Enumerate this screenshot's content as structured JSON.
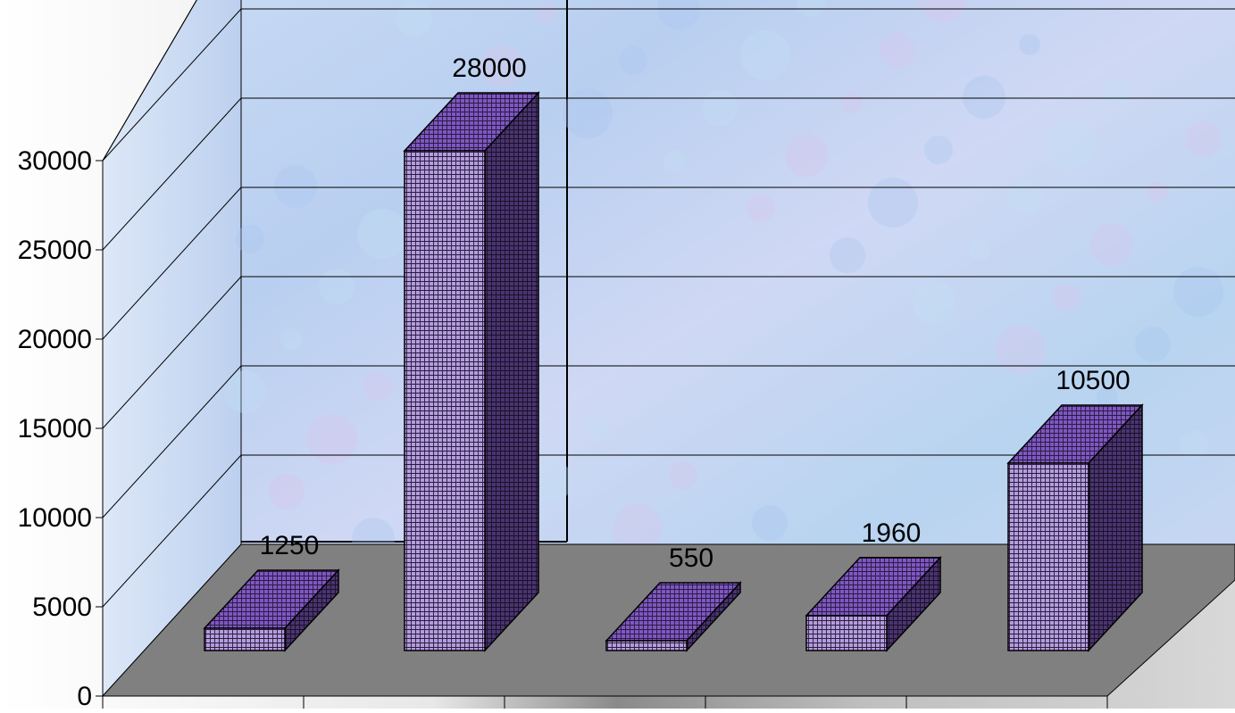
{
  "chart_data": {
    "type": "bar",
    "style": "3d-column",
    "title": "",
    "xlabel": "",
    "ylabel": "",
    "categories": [
      "",
      "",
      "",
      "",
      ""
    ],
    "values": [
      1250,
      28000,
      550,
      1960,
      10500
    ],
    "data_labels": [
      "1250",
      "28000",
      "550",
      "1960",
      "10500"
    ],
    "yticks": [
      "0",
      "5000",
      "10000",
      "15000",
      "20000",
      "25000",
      "30000"
    ],
    "ylim": [
      0,
      30000
    ],
    "grid": true,
    "legend": "none",
    "colors": {
      "bar_front": "#b39ddb",
      "bar_top": "#7e57c2",
      "bar_side": "#4a3470",
      "bar_hatch": "#2a1a40",
      "floor": "#808080",
      "wall": "#bcd3f2",
      "gridline": "#000000"
    }
  }
}
